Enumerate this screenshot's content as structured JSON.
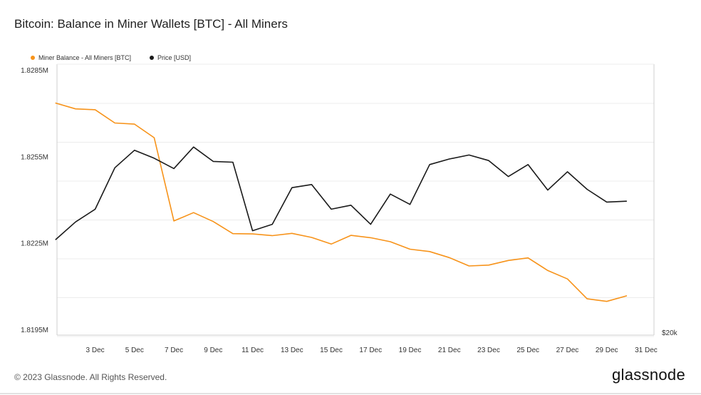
{
  "title": "Bitcoin: Balance in Miner Wallets [BTC] - All Miners",
  "footer": "© 2023 Glassnode. All Rights Reserved.",
  "brand": "glassnode",
  "colors": {
    "miner": "#f7931a",
    "price": "#1a1a1a",
    "grid": "#ececec",
    "axis": "#cfcfcf"
  },
  "chart_data": {
    "type": "line",
    "legend": [
      "Miner Balance - All Miners [BTC]",
      "Price [USD]"
    ],
    "legend_position": "top-left",
    "grid": true,
    "x_start_day": 1,
    "x_ticks": [
      "3 Dec",
      "5 Dec",
      "7 Dec",
      "9 Dec",
      "11 Dec",
      "13 Dec",
      "15 Dec",
      "17 Dec",
      "19 Dec",
      "21 Dec",
      "23 Dec",
      "25 Dec",
      "27 Dec",
      "29 Dec",
      "31 Dec"
    ],
    "x_tick_days": [
      3,
      5,
      7,
      9,
      11,
      13,
      15,
      17,
      19,
      21,
      23,
      25,
      27,
      29,
      31
    ],
    "x_range_days": [
      1.06,
      31.4
    ],
    "y_left_ticks": [
      "1.8285M",
      "1.8255M",
      "1.8225M",
      "1.8195M"
    ],
    "y_left_tick_values": [
      1828500,
      1825500,
      1822500,
      1819500
    ],
    "y_left_range": [
      1819300,
      1828700
    ],
    "y_right_ticks": [
      "$20k"
    ],
    "series": [
      {
        "name": "Miner Balance - All Miners [BTC]",
        "axis": "left",
        "days": [
          1,
          2,
          3,
          4,
          5,
          6,
          7,
          8,
          9,
          10,
          11,
          12,
          13,
          14,
          15,
          16,
          17,
          18,
          19,
          20,
          21,
          22,
          23,
          24,
          25,
          26,
          27,
          28,
          29,
          30
        ],
        "values": [
          1827350,
          1827150,
          1827120,
          1826660,
          1826620,
          1826150,
          1823260,
          1823550,
          1823240,
          1822820,
          1822810,
          1822750,
          1822830,
          1822690,
          1822460,
          1822760,
          1822680,
          1822540,
          1822280,
          1822200,
          1821990,
          1821700,
          1821730,
          1821890,
          1821980,
          1821540,
          1821250,
          1820560,
          1820470,
          1820660
        ]
      },
      {
        "name": "Price [USD]",
        "axis": "right",
        "days": [
          1,
          2,
          3,
          4,
          5,
          6,
          7,
          8,
          9,
          10,
          11,
          12,
          13,
          14,
          15,
          16,
          17,
          18,
          19,
          20,
          21,
          22,
          23,
          24,
          25,
          26,
          27,
          28,
          29,
          30
        ],
        "values": [
          16400,
          16620,
          16780,
          17300,
          17520,
          17420,
          17290,
          17560,
          17380,
          17370,
          16510,
          16590,
          17050,
          17090,
          16780,
          16830,
          16590,
          16970,
          16840,
          17340,
          17410,
          17460,
          17390,
          17190,
          17340,
          17020,
          17250,
          17030,
          16870,
          16880
        ]
      }
    ],
    "y_right_range": [
      15200,
      18600
    ]
  }
}
